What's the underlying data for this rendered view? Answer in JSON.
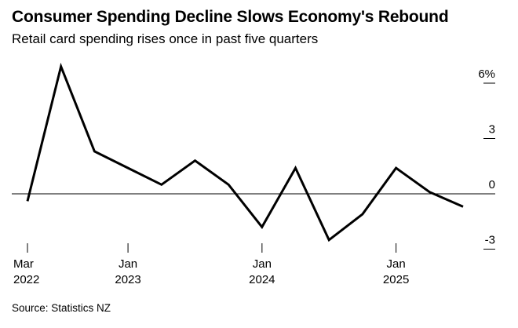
{
  "title": "Consumer Spending Decline Slows Economy's Rebound",
  "subtitle": "Retail card spending rises once in past five quarters",
  "source": "Source: Statistics NZ",
  "chart_data": {
    "type": "line",
    "title": "Consumer Spending Decline Slows Economy's Rebound",
    "subtitle": "Retail card spending rises once in past five quarters",
    "xlabel": "",
    "ylabel": "",
    "ylim": [
      -3,
      6
    ],
    "y_ticks": [
      {
        "value": 6,
        "label": "6%"
      },
      {
        "value": 3,
        "label": "3"
      },
      {
        "value": 0,
        "label": "0"
      },
      {
        "value": -3,
        "label": "-3"
      }
    ],
    "x_ticks": [
      {
        "index": 0,
        "line1": "Mar",
        "line2": "2022"
      },
      {
        "index": 3,
        "line1": "Jan",
        "line2": "2023"
      },
      {
        "index": 7,
        "line1": "Jan",
        "line2": "2024"
      },
      {
        "index": 11,
        "line1": "Jan",
        "line2": "2025"
      }
    ],
    "x": [
      "Mar 2022",
      "Jun 2022",
      "Sep 2022",
      "Dec 2022",
      "Mar 2023",
      "Jun 2023",
      "Sep 2023",
      "Dec 2023",
      "Mar 2024",
      "Jun 2024",
      "Sep 2024",
      "Dec 2024",
      "Mar 2025",
      "Jun 2025"
    ],
    "series": [
      {
        "values": [
          -0.4,
          6.9,
          2.3,
          1.4,
          0.5,
          1.8,
          0.5,
          -1.8,
          1.4,
          -2.5,
          -1.1,
          1.4,
          0.1,
          -0.7
        ]
      }
    ],
    "line_color": "#000000",
    "grid": false
  }
}
